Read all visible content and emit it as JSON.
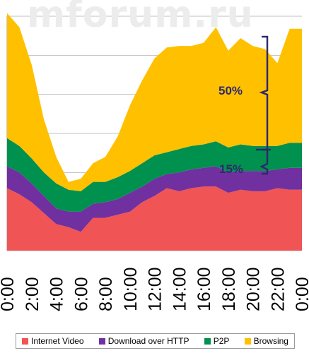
{
  "watermark": "mforum.ru",
  "chart_data": {
    "type": "area",
    "stacked": true,
    "x": [
      "0:00",
      "1:00",
      "2:00",
      "3:00",
      "4:00",
      "5:00",
      "6:00",
      "7:00",
      "8:00",
      "9:00",
      "10:00",
      "11:00",
      "12:00",
      "13:00",
      "14:00",
      "15:00",
      "16:00",
      "17:00",
      "18:00",
      "19:00",
      "20:00",
      "21:00",
      "22:00",
      "23:00"
    ],
    "x_tick_labels": [
      "0:00",
      "2:00",
      "4:00",
      "6:00",
      "8:00",
      "10:00",
      "12:00",
      "14:00",
      "16:00",
      "18:00",
      "20:00",
      "22:00",
      "0:00"
    ],
    "ylim": [
      0,
      150
    ],
    "y_grid": [
      0,
      25,
      50,
      75,
      100,
      125,
      150
    ],
    "series": [
      {
        "name": "Internet Video",
        "color": "#f05454",
        "values": [
          40,
          36,
          31,
          24,
          17,
          15,
          12,
          21,
          21,
          23,
          25,
          31,
          35,
          40,
          38,
          40,
          41,
          41,
          37,
          39,
          38,
          38,
          40,
          39
        ]
      },
      {
        "name": "Download over HTTP",
        "color": "#7030a0",
        "values": [
          14,
          14,
          12,
          11,
          10,
          10,
          13,
          9,
          10,
          10,
          12,
          10,
          11,
          9,
          12,
          12,
          12,
          13,
          13,
          12,
          13,
          13,
          12,
          14
        ]
      },
      {
        "name": "P2P",
        "color": "#00914f",
        "values": [
          18,
          17,
          16,
          15,
          16,
          14,
          13,
          14,
          13,
          14,
          14,
          15,
          15,
          14,
          15,
          15,
          15,
          16,
          16,
          17,
          16,
          16,
          15,
          16
        ]
      },
      {
        "name": "Browsing",
        "color": "#ffc000",
        "values": [
          80,
          76,
          60,
          34,
          17,
          5,
          8,
          12,
          16,
          26,
          42,
          53,
          62,
          67,
          66,
          64,
          65,
          73,
          62,
          68,
          64,
          62,
          53,
          73
        ]
      }
    ],
    "annotations": [
      "50%",
      "15%"
    ],
    "legend_position": "bottom"
  },
  "colors": {
    "annotation": "#2e2a6b",
    "grid": "#c0c0c0"
  }
}
